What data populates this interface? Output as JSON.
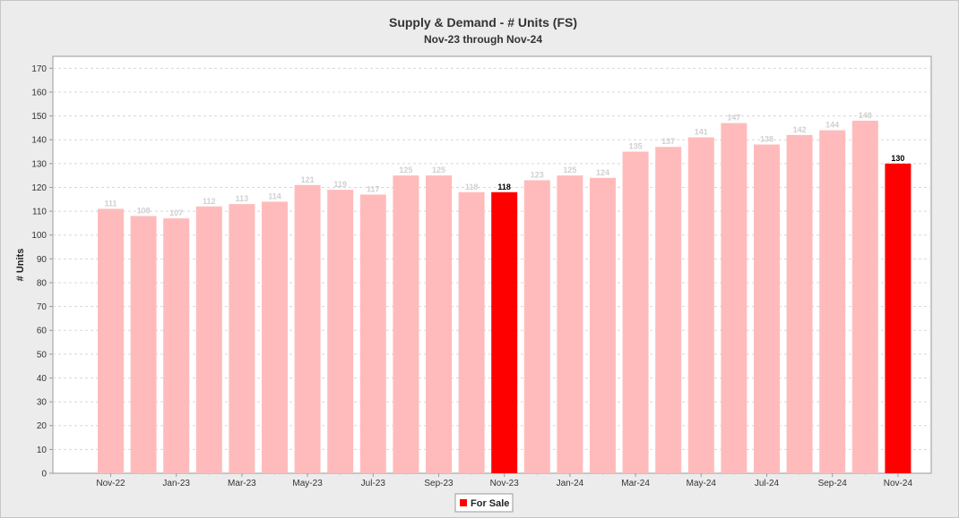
{
  "chart_data": {
    "type": "bar",
    "title": "Supply & Demand - # Units (FS)",
    "subtitle": "Nov-23 through Nov-24",
    "xlabel": "",
    "ylabel": "# Units",
    "ylim": [
      0,
      175
    ],
    "yticks": [
      0,
      10,
      20,
      30,
      40,
      50,
      60,
      70,
      80,
      90,
      100,
      110,
      120,
      130,
      140,
      150,
      160,
      170
    ],
    "grid": true,
    "legend_position": "bottom-center",
    "categories": [
      "Nov-22",
      "Dec-22",
      "Jan-23",
      "Feb-23",
      "Mar-23",
      "Apr-23",
      "May-23",
      "Jun-23",
      "Jul-23",
      "Aug-23",
      "Sep-23",
      "Oct-23",
      "Nov-23",
      "Dec-23",
      "Jan-24",
      "Feb-24",
      "Mar-24",
      "Apr-24",
      "May-24",
      "Jun-24",
      "Jul-24",
      "Aug-24",
      "Sep-24",
      "Oct-24",
      "Nov-24"
    ],
    "xtick_labels": [
      "Nov-22",
      "",
      "Jan-23",
      "",
      "Mar-23",
      "",
      "May-23",
      "",
      "Jul-23",
      "",
      "Sep-23",
      "",
      "Nov-23",
      "",
      "Jan-24",
      "",
      "Mar-24",
      "",
      "May-24",
      "",
      "Jul-24",
      "",
      "Sep-24",
      "",
      "Nov-24"
    ],
    "series": [
      {
        "name": "For Sale",
        "values": [
          111,
          108,
          107,
          112,
          113,
          114,
          121,
          119,
          117,
          125,
          125,
          118,
          118,
          123,
          125,
          124,
          135,
          137,
          141,
          147,
          138,
          142,
          144,
          148,
          130
        ]
      }
    ],
    "highlighted_categories": [
      "Nov-23",
      "Nov-24"
    ],
    "colors": {
      "highlight": "#ff0000",
      "faded": "#ffbbbb",
      "label_highlight": "#000000",
      "label_faded": "#d0d0d0",
      "gridline": "#d8d8d8",
      "plot_bg": "#ffffff"
    }
  }
}
